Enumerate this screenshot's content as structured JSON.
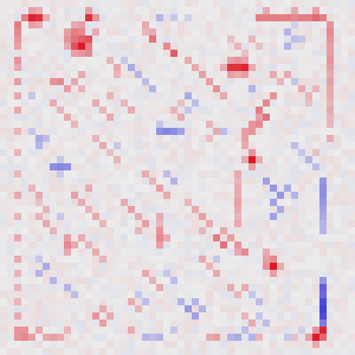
{
  "chart_data": {
    "type": "heatmap",
    "title": "",
    "xlabel": "",
    "ylabel": "",
    "rows": 50,
    "cols": 50,
    "value_range": [
      -1,
      1
    ],
    "colormap": {
      "negative": "#3030d8",
      "zero": "#ececec",
      "positive": "#dc0f1e"
    },
    "axes_visible": false,
    "grid": false,
    "legend": "none",
    "background_value": 0,
    "cells": [
      [
        2,
        4,
        0.92
      ],
      [
        2,
        5,
        0.85
      ],
      [
        1,
        4,
        0.35
      ],
      [
        1,
        5,
        0.3
      ],
      [
        3,
        4,
        0.35
      ],
      [
        3,
        5,
        0.3
      ],
      [
        2,
        3,
        0.3
      ],
      [
        2,
        6,
        0.3
      ],
      [
        2,
        12,
        0.85
      ],
      [
        2,
        13,
        0.4
      ],
      [
        1,
        12,
        0.35
      ],
      [
        2,
        22,
        -0.3
      ],
      [
        2,
        24,
        -0.2
      ],
      [
        2,
        26,
        -0.15
      ],
      [
        2,
        36,
        0.5
      ],
      [
        2,
        37,
        0.5
      ],
      [
        2,
        38,
        0.5
      ],
      [
        2,
        39,
        0.5
      ],
      [
        2,
        40,
        0.5
      ],
      [
        2,
        41,
        0.45
      ],
      [
        2,
        42,
        0.5
      ],
      [
        2,
        43,
        0.5
      ],
      [
        2,
        44,
        0.6
      ],
      [
        2,
        45,
        0.5
      ],
      [
        1,
        37,
        0.3
      ],
      [
        1,
        41,
        0.3
      ],
      [
        1,
        44,
        0.35
      ],
      [
        2,
        3,
        0.5
      ],
      [
        3,
        2,
        0.5
      ],
      [
        4,
        2,
        0.45
      ],
      [
        5,
        2,
        0.4
      ],
      [
        6,
        2,
        0.35
      ],
      [
        8,
        2,
        0.4
      ],
      [
        9,
        2,
        0.3
      ],
      [
        11,
        2,
        0.35
      ],
      [
        13,
        2,
        0.3
      ],
      [
        15,
        2,
        0.3
      ],
      [
        18,
        2,
        0.25
      ],
      [
        21,
        2,
        0.25
      ],
      [
        24,
        2,
        0.25
      ],
      [
        27,
        2,
        0.3
      ],
      [
        30,
        2,
        0.25
      ],
      [
        33,
        2,
        0.3
      ],
      [
        36,
        2,
        0.3
      ],
      [
        38,
        2,
        0.25
      ],
      [
        40,
        2,
        0.25
      ],
      [
        42,
        2,
        0.25
      ],
      [
        44,
        2,
        0.3
      ],
      [
        46,
        2,
        0.4
      ],
      [
        47,
        2,
        0.4
      ],
      [
        4,
        10,
        0.5
      ],
      [
        4,
        11,
        0.45
      ],
      [
        5,
        10,
        0.55
      ],
      [
        5,
        11,
        0.65
      ],
      [
        5,
        12,
        0.7
      ],
      [
        6,
        11,
        0.95
      ],
      [
        6,
        10,
        0.7
      ],
      [
        6,
        12,
        0.5
      ],
      [
        7,
        10,
        0.35
      ],
      [
        7,
        11,
        0.4
      ],
      [
        7,
        12,
        0.45
      ],
      [
        4,
        9,
        0.35
      ],
      [
        5,
        9,
        0.4
      ],
      [
        6,
        9,
        0.3
      ],
      [
        3,
        10,
        0.3
      ],
      [
        3,
        11,
        0.35
      ],
      [
        4,
        13,
        0.3
      ],
      [
        4,
        21,
        0.3
      ],
      [
        5,
        21,
        0.55
      ],
      [
        6,
        23,
        0.45
      ],
      [
        7,
        24,
        0.65
      ],
      [
        8,
        26,
        0.3
      ],
      [
        9,
        27,
        0.3
      ],
      [
        10,
        28,
        0.35
      ],
      [
        11,
        29,
        0.35
      ],
      [
        12,
        30,
        0.4
      ],
      [
        13,
        31,
        0.3
      ],
      [
        3,
        20,
        0.3
      ],
      [
        4,
        20,
        0.25
      ],
      [
        9,
        32,
        0.85
      ],
      [
        9,
        33,
        0.85
      ],
      [
        9,
        34,
        0.9
      ],
      [
        8,
        32,
        0.35
      ],
      [
        8,
        33,
        0.4
      ],
      [
        8,
        34,
        0.35
      ],
      [
        10,
        32,
        0.35
      ],
      [
        10,
        33,
        0.3
      ],
      [
        10,
        34,
        0.35
      ],
      [
        9,
        31,
        0.3
      ],
      [
        9,
        35,
        0.3
      ],
      [
        4,
        40,
        -0.3
      ],
      [
        5,
        41,
        -0.25
      ],
      [
        6,
        40,
        -0.3
      ],
      [
        5,
        42,
        -0.2
      ],
      [
        3,
        41,
        -0.15
      ],
      [
        3,
        46,
        0.4
      ],
      [
        4,
        46,
        0.45
      ],
      [
        5,
        46,
        0.4
      ],
      [
        6,
        46,
        0.35
      ],
      [
        7,
        46,
        0.35
      ],
      [
        8,
        46,
        0.4
      ],
      [
        9,
        46,
        0.35
      ],
      [
        10,
        46,
        0.3
      ],
      [
        11,
        46,
        0.35
      ],
      [
        12,
        46,
        0.3
      ],
      [
        13,
        46,
        0.3
      ],
      [
        14,
        46,
        0.25
      ],
      [
        15,
        46,
        0.3
      ],
      [
        16,
        46,
        0.25
      ],
      [
        17,
        46,
        0.25
      ],
      [
        19,
        46,
        0.3
      ],
      [
        9,
        18,
        -0.35
      ],
      [
        10,
        19,
        -0.3
      ],
      [
        11,
        20,
        -0.25
      ],
      [
        12,
        21,
        -0.3
      ],
      [
        13,
        26,
        -0.35
      ],
      [
        14,
        27,
        -0.25
      ],
      [
        12,
        35,
        -0.3
      ],
      [
        15,
        36,
        0.5
      ],
      [
        16,
        37,
        0.55
      ],
      [
        17,
        36,
        0.45
      ],
      [
        17,
        35,
        0.4
      ],
      [
        18,
        34,
        0.35
      ],
      [
        14,
        37,
        0.45
      ],
      [
        13,
        38,
        0.4
      ],
      [
        16,
        36,
        0.35
      ],
      [
        18,
        35,
        0.4
      ],
      [
        19,
        34,
        0.35
      ],
      [
        20,
        34,
        0.3
      ],
      [
        22,
        35,
        0.95
      ],
      [
        21,
        35,
        0.4
      ],
      [
        23,
        35,
        0.35
      ],
      [
        22,
        34,
        0.3
      ],
      [
        22,
        36,
        0.3
      ],
      [
        18,
        22,
        -0.5
      ],
      [
        18,
        23,
        -0.55
      ],
      [
        18,
        24,
        -0.5
      ],
      [
        18,
        25,
        -0.4
      ],
      [
        17,
        22,
        -0.2
      ],
      [
        23,
        7,
        -0.5
      ],
      [
        23,
        8,
        -0.55
      ],
      [
        23,
        9,
        -0.5
      ],
      [
        22,
        8,
        -0.2
      ],
      [
        24,
        8,
        -0.2
      ],
      [
        19,
        5,
        -0.35
      ],
      [
        20,
        5,
        -0.3
      ],
      [
        19,
        6,
        -0.25
      ],
      [
        18,
        4,
        -0.2
      ],
      [
        13,
        4,
        -0.2
      ],
      [
        14,
        7,
        0.3
      ],
      [
        15,
        8,
        0.25
      ],
      [
        16,
        9,
        0.3
      ],
      [
        17,
        10,
        0.25
      ],
      [
        11,
        7,
        0.4
      ],
      [
        11,
        8,
        0.45
      ],
      [
        12,
        9,
        0.35
      ],
      [
        11,
        10,
        0.3
      ],
      [
        10,
        11,
        0.3
      ],
      [
        12,
        11,
        0.25
      ],
      [
        14,
        13,
        0.3
      ],
      [
        15,
        14,
        0.25
      ],
      [
        16,
        15,
        0.3
      ],
      [
        13,
        15,
        0.25
      ],
      [
        14,
        17,
        0.25
      ],
      [
        15,
        18,
        0.3
      ],
      [
        25,
        37,
        -0.4
      ],
      [
        26,
        38,
        -0.45
      ],
      [
        27,
        39,
        -0.45
      ],
      [
        28,
        38,
        -0.4
      ],
      [
        29,
        39,
        -0.35
      ],
      [
        30,
        38,
        -0.4
      ],
      [
        26,
        40,
        -0.35
      ],
      [
        27,
        41,
        -0.3
      ],
      [
        25,
        45,
        -0.45
      ],
      [
        26,
        45,
        -0.5
      ],
      [
        27,
        45,
        -0.5
      ],
      [
        28,
        45,
        -0.45
      ],
      [
        29,
        45,
        -0.4
      ],
      [
        30,
        45,
        -0.35
      ],
      [
        31,
        45,
        -0.3
      ],
      [
        32,
        45,
        -0.3
      ],
      [
        40,
        45,
        -0.75
      ],
      [
        41,
        45,
        -0.7
      ],
      [
        42,
        45,
        -0.85
      ],
      [
        43,
        45,
        -0.9
      ],
      [
        44,
        45,
        -0.85
      ],
      [
        45,
        45,
        -0.6
      ],
      [
        39,
        45,
        -0.45
      ],
      [
        46,
        45,
        0.9
      ],
      [
        47,
        44,
        0.95
      ],
      [
        47,
        45,
        0.6
      ],
      [
        46,
        44,
        0.4
      ],
      [
        48,
        44,
        0.3
      ],
      [
        47,
        43,
        0.35
      ],
      [
        36,
        37,
        0.35
      ],
      [
        37,
        38,
        0.95
      ],
      [
        36,
        38,
        0.45
      ],
      [
        38,
        38,
        0.35
      ],
      [
        37,
        37,
        0.4
      ],
      [
        37,
        39,
        0.3
      ],
      [
        35,
        37,
        0.3
      ],
      [
        33,
        30,
        0.5
      ],
      [
        34,
        31,
        0.55
      ],
      [
        34,
        33,
        0.4
      ],
      [
        35,
        34,
        0.45
      ],
      [
        33,
        32,
        0.35
      ],
      [
        32,
        31,
        0.3
      ],
      [
        35,
        33,
        0.3
      ],
      [
        32,
        22,
        0.4
      ],
      [
        33,
        22,
        0.45
      ],
      [
        34,
        22,
        0.35
      ],
      [
        30,
        22,
        0.3
      ],
      [
        31,
        22,
        0.25
      ],
      [
        33,
        23,
        0.3
      ],
      [
        29,
        18,
        0.35
      ],
      [
        30,
        19,
        0.3
      ],
      [
        31,
        20,
        0.35
      ],
      [
        28,
        17,
        0.3
      ],
      [
        32,
        19,
        0.25
      ],
      [
        34,
        9,
        0.45
      ],
      [
        33,
        9,
        0.35
      ],
      [
        35,
        9,
        0.3
      ],
      [
        34,
        10,
        0.3
      ],
      [
        27,
        10,
        0.35
      ],
      [
        28,
        11,
        0.3
      ],
      [
        26,
        12,
        0.3
      ],
      [
        29,
        12,
        0.25
      ],
      [
        30,
        13,
        0.3
      ],
      [
        31,
        14,
        0.25
      ],
      [
        30,
        28,
        0.35
      ],
      [
        31,
        29,
        0.3
      ],
      [
        32,
        28,
        0.25
      ],
      [
        29,
        27,
        0.3
      ],
      [
        28,
        26,
        0.25
      ],
      [
        24,
        33,
        0.3
      ],
      [
        25,
        33,
        0.25
      ],
      [
        26,
        33,
        0.3
      ],
      [
        27,
        33,
        0.3
      ],
      [
        28,
        33,
        0.35
      ],
      [
        29,
        33,
        0.3
      ],
      [
        30,
        33,
        0.25
      ],
      [
        31,
        33,
        0.3
      ],
      [
        33,
        11,
        0.3
      ],
      [
        34,
        12,
        0.25
      ],
      [
        35,
        13,
        0.3
      ],
      [
        36,
        14,
        0.25
      ],
      [
        37,
        6,
        -0.35
      ],
      [
        38,
        5,
        -0.3
      ],
      [
        39,
        7,
        -0.3
      ],
      [
        36,
        5,
        -0.2
      ],
      [
        40,
        9,
        -0.3
      ],
      [
        41,
        10,
        -0.25
      ],
      [
        42,
        25,
        -0.3
      ],
      [
        43,
        26,
        -0.45
      ],
      [
        44,
        27,
        -0.4
      ],
      [
        42,
        27,
        -0.3
      ],
      [
        43,
        28,
        -0.3
      ],
      [
        44,
        13,
        0.4
      ],
      [
        45,
        14,
        0.35
      ],
      [
        44,
        15,
        0.3
      ],
      [
        43,
        14,
        0.3
      ],
      [
        46,
        3,
        0.4
      ],
      [
        47,
        3,
        0.45
      ],
      [
        47,
        4,
        0.35
      ],
      [
        46,
        5,
        0.3
      ],
      [
        47,
        6,
        0.3
      ],
      [
        47,
        7,
        0.35
      ],
      [
        47,
        8,
        0.3
      ],
      [
        46,
        9,
        0.25
      ],
      [
        46,
        18,
        0.3
      ],
      [
        47,
        20,
        -0.3
      ],
      [
        47,
        21,
        -0.25
      ],
      [
        47,
        22,
        -0.3
      ],
      [
        46,
        24,
        -0.2
      ],
      [
        47,
        29,
        0.3
      ],
      [
        47,
        30,
        0.35
      ],
      [
        47,
        32,
        -0.3
      ],
      [
        47,
        33,
        -0.35
      ],
      [
        46,
        34,
        -0.25
      ],
      [
        47,
        35,
        -0.3
      ],
      [
        47,
        36,
        0.25
      ],
      [
        47,
        40,
        -0.2
      ],
      [
        47,
        41,
        0.2
      ],
      [
        46,
        42,
        -0.15
      ],
      [
        5,
        32,
        0.2
      ],
      [
        6,
        33,
        0.25
      ],
      [
        7,
        34,
        0.2
      ],
      [
        5,
        35,
        0.25
      ],
      [
        6,
        36,
        0.2
      ],
      [
        12,
        42,
        0.3
      ],
      [
        13,
        43,
        0.25
      ],
      [
        14,
        43,
        0.2
      ],
      [
        12,
        44,
        0.25
      ],
      [
        20,
        41,
        -0.25
      ],
      [
        21,
        42,
        -0.2
      ],
      [
        22,
        43,
        -0.3
      ],
      [
        23,
        44,
        -0.25
      ],
      [
        21,
        44,
        0.2
      ],
      [
        19,
        13,
        0.25
      ],
      [
        20,
        14,
        0.3
      ],
      [
        21,
        15,
        0.2
      ],
      [
        22,
        16,
        0.25
      ],
      [
        20,
        16,
        -0.2
      ],
      [
        24,
        20,
        0.3
      ],
      [
        25,
        21,
        0.25
      ],
      [
        26,
        22,
        0.35
      ],
      [
        27,
        23,
        0.3
      ],
      [
        24,
        23,
        -0.25
      ],
      [
        25,
        24,
        -0.3
      ],
      [
        38,
        20,
        0.3
      ],
      [
        39,
        21,
        0.25
      ],
      [
        40,
        22,
        0.3
      ],
      [
        38,
        23,
        -0.2
      ],
      [
        39,
        24,
        -0.25
      ],
      [
        30,
        5,
        0.25
      ],
      [
        31,
        6,
        0.3
      ],
      [
        32,
        7,
        0.25
      ],
      [
        30,
        8,
        -0.2
      ],
      [
        40,
        32,
        0.3
      ],
      [
        41,
        33,
        0.25
      ],
      [
        40,
        34,
        0.3
      ],
      [
        41,
        35,
        -0.2
      ],
      [
        42,
        36,
        -0.25
      ],
      [
        15,
        24,
        0.25
      ],
      [
        16,
        25,
        0.3
      ],
      [
        14,
        25,
        0.2
      ],
      [
        15,
        26,
        -0.2
      ],
      [
        8,
        15,
        0.25
      ],
      [
        9,
        16,
        0.3
      ],
      [
        10,
        16,
        0.25
      ],
      [
        8,
        17,
        -0.2
      ],
      [
        36,
        28,
        0.3
      ],
      [
        37,
        29,
        0.25
      ],
      [
        38,
        30,
        0.3
      ],
      [
        36,
        30,
        -0.2
      ],
      [
        26,
        4,
        0.25
      ],
      [
        27,
        5,
        0.3
      ],
      [
        28,
        5,
        0.2
      ],
      [
        29,
        6,
        0.25
      ],
      [
        10,
        38,
        0.3
      ],
      [
        11,
        39,
        0.25
      ],
      [
        10,
        40,
        0.3
      ],
      [
        11,
        41,
        -0.2
      ],
      [
        17,
        29,
        0.25
      ],
      [
        18,
        30,
        0.3
      ],
      [
        19,
        29,
        0.2
      ],
      [
        18,
        31,
        -0.25
      ],
      [
        44,
        34,
        0.25
      ],
      [
        45,
        35,
        0.3
      ],
      [
        44,
        36,
        -0.2
      ],
      [
        45,
        37,
        -0.25
      ],
      [
        42,
        18,
        0.3
      ],
      [
        43,
        19,
        0.25
      ],
      [
        41,
        19,
        -0.2
      ],
      [
        42,
        20,
        -0.25
      ]
    ]
  }
}
